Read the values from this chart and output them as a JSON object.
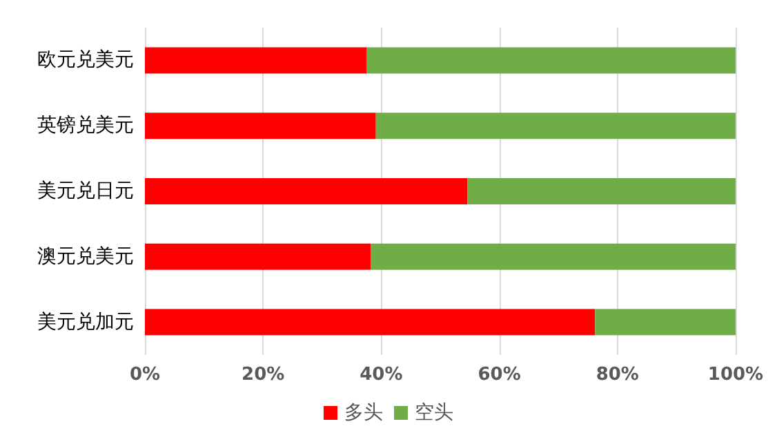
{
  "chart_data": {
    "type": "bar",
    "orientation": "horizontal",
    "stacked": true,
    "categories": [
      "欧元兑美元",
      "英镑兑美元",
      "美元兑日元",
      "澳元兑美元",
      "美元兑加元"
    ],
    "series": [
      {
        "name": "多头",
        "color": "#ff0000",
        "values": [
          37.5,
          39.1,
          54.6,
          38.2,
          76.2
        ]
      },
      {
        "name": "空头",
        "color": "#70ad47",
        "values": [
          62.5,
          60.9,
          45.4,
          61.8,
          23.8
        ]
      }
    ],
    "xlim": [
      0,
      100
    ],
    "xticks": [
      {
        "value": 0,
        "label": "0%"
      },
      {
        "value": 20,
        "label": "20%"
      },
      {
        "value": 40,
        "label": "40%"
      },
      {
        "value": 60,
        "label": "60%"
      },
      {
        "value": 80,
        "label": "80%"
      },
      {
        "value": 100,
        "label": "100%"
      }
    ],
    "grid": "x",
    "legend": "bottom"
  }
}
